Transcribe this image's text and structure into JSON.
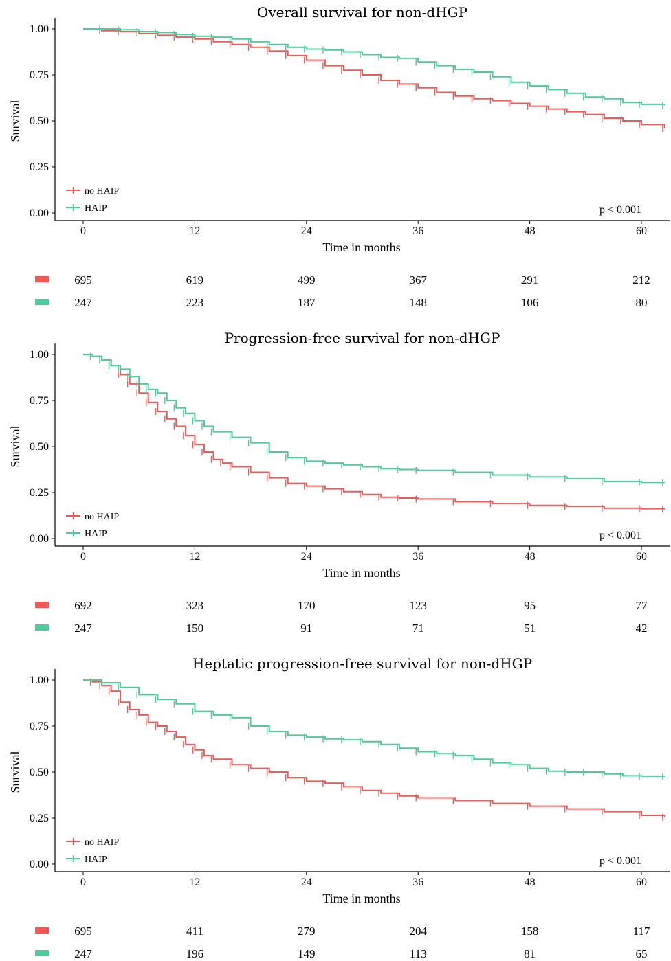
{
  "chart_data": [
    {
      "type": "line",
      "title": "Overall survival for non-dHGP",
      "xlabel": "Time in months",
      "ylabel": "Survival",
      "xlim": [
        0,
        62.5
      ],
      "ylim": [
        0,
        1.05
      ],
      "xticks": [
        0,
        12,
        24,
        36,
        48,
        60
      ],
      "yticks": [
        "0.00",
        "0.25",
        "0.50",
        "0.75",
        "1.00"
      ],
      "legend": "bottom-left",
      "grid": false,
      "p_value": "p < 0.001",
      "series": [
        {
          "name": "no HAIP",
          "color": "#EE5A56",
          "x": [
            0,
            2,
            4,
            6,
            8,
            10,
            12,
            14,
            16,
            18,
            20,
            22,
            24,
            26,
            28,
            30,
            32,
            34,
            36,
            38,
            40,
            42,
            44,
            46,
            48,
            50,
            52,
            54,
            56,
            58,
            60,
            62.5
          ],
          "y": [
            1.0,
            0.99,
            0.985,
            0.975,
            0.965,
            0.955,
            0.945,
            0.93,
            0.915,
            0.9,
            0.88,
            0.855,
            0.83,
            0.8,
            0.775,
            0.75,
            0.72,
            0.7,
            0.68,
            0.655,
            0.635,
            0.62,
            0.61,
            0.595,
            0.58,
            0.565,
            0.55,
            0.535,
            0.515,
            0.5,
            0.48,
            0.46
          ]
        },
        {
          "name": "HAIP",
          "color": "#4DCB9A",
          "x": [
            0,
            2,
            4,
            6,
            8,
            10,
            12,
            14,
            16,
            18,
            20,
            22,
            24,
            26,
            28,
            30,
            32,
            34,
            36,
            38,
            40,
            42,
            44,
            46,
            48,
            50,
            52,
            54,
            56,
            58,
            60,
            62.5
          ],
          "y": [
            1.0,
            1.0,
            0.995,
            0.985,
            0.98,
            0.97,
            0.96,
            0.955,
            0.945,
            0.93,
            0.915,
            0.9,
            0.89,
            0.885,
            0.875,
            0.86,
            0.845,
            0.84,
            0.82,
            0.8,
            0.78,
            0.765,
            0.74,
            0.71,
            0.69,
            0.67,
            0.65,
            0.63,
            0.62,
            0.6,
            0.59,
            0.585
          ]
        }
      ],
      "risk_table": [
        {
          "name": "no HAIP",
          "values": [
            "695",
            "619",
            "499",
            "367",
            "291",
            "212"
          ]
        },
        {
          "name": "HAIP",
          "values": [
            "247",
            "223",
            "187",
            "148",
            "106",
            "80"
          ]
        }
      ]
    },
    {
      "type": "line",
      "title": "Progression-free survival for non-dHGP",
      "xlabel": "Time in months",
      "ylabel": "Survival",
      "xlim": [
        0,
        62.5
      ],
      "ylim": [
        0,
        1.05
      ],
      "xticks": [
        0,
        12,
        24,
        36,
        48,
        60
      ],
      "yticks": [
        "0.00",
        "0.25",
        "0.50",
        "0.75",
        "1.00"
      ],
      "legend": "bottom-left",
      "grid": false,
      "p_value": "p < 0.001",
      "series": [
        {
          "name": "no HAIP",
          "color": "#EE5A56",
          "x": [
            0,
            1,
            2,
            3,
            4,
            5,
            6,
            7,
            8,
            9,
            10,
            11,
            12,
            13,
            14,
            15,
            16,
            18,
            20,
            22,
            24,
            26,
            28,
            30,
            32,
            34,
            36,
            40,
            44,
            48,
            52,
            56,
            60,
            62.5
          ],
          "y": [
            1.0,
            0.99,
            0.97,
            0.94,
            0.89,
            0.84,
            0.79,
            0.74,
            0.69,
            0.65,
            0.61,
            0.56,
            0.51,
            0.47,
            0.43,
            0.41,
            0.39,
            0.36,
            0.33,
            0.3,
            0.285,
            0.27,
            0.255,
            0.24,
            0.225,
            0.22,
            0.215,
            0.2,
            0.19,
            0.18,
            0.175,
            0.165,
            0.162,
            0.16
          ]
        },
        {
          "name": "HAIP",
          "color": "#4DCB9A",
          "x": [
            0,
            1,
            2,
            3,
            4,
            5,
            6,
            7,
            8,
            9,
            10,
            11,
            12,
            13,
            14,
            16,
            18,
            20,
            22,
            24,
            26,
            28,
            30,
            32,
            34,
            36,
            40,
            44,
            48,
            52,
            56,
            60,
            62.5
          ],
          "y": [
            1.0,
            0.99,
            0.97,
            0.94,
            0.92,
            0.88,
            0.84,
            0.81,
            0.79,
            0.75,
            0.71,
            0.68,
            0.64,
            0.61,
            0.58,
            0.55,
            0.52,
            0.47,
            0.44,
            0.42,
            0.41,
            0.4,
            0.39,
            0.38,
            0.375,
            0.37,
            0.36,
            0.345,
            0.335,
            0.325,
            0.31,
            0.305,
            0.303
          ]
        }
      ],
      "risk_table": [
        {
          "name": "no HAIP",
          "values": [
            "692",
            "323",
            "170",
            "123",
            "95",
            "77"
          ]
        },
        {
          "name": "HAIP",
          "values": [
            "247",
            "150",
            "91",
            "71",
            "51",
            "42"
          ]
        }
      ]
    },
    {
      "type": "line",
      "title": "Heptatic progression-free survival for non-dHGP",
      "xlabel": "Time in months",
      "ylabel": "Survival",
      "xlim": [
        0,
        62.5
      ],
      "ylim": [
        0,
        1.05
      ],
      "xticks": [
        0,
        12,
        24,
        36,
        48,
        60
      ],
      "yticks": [
        "0.00",
        "0.25",
        "0.50",
        "0.75",
        "1.00"
      ],
      "legend": "bottom-left",
      "grid": false,
      "p_value": "p < 0.001",
      "series": [
        {
          "name": "no HAIP",
          "color": "#EE5A56",
          "x": [
            0,
            1,
            2,
            3,
            4,
            5,
            6,
            7,
            8,
            9,
            10,
            11,
            12,
            13,
            14,
            16,
            18,
            20,
            22,
            24,
            26,
            28,
            30,
            32,
            34,
            36,
            40,
            44,
            48,
            52,
            56,
            60,
            62.5
          ],
          "y": [
            1.0,
            0.99,
            0.97,
            0.94,
            0.88,
            0.84,
            0.81,
            0.77,
            0.75,
            0.72,
            0.69,
            0.65,
            0.62,
            0.59,
            0.57,
            0.54,
            0.52,
            0.5,
            0.47,
            0.45,
            0.44,
            0.42,
            0.4,
            0.385,
            0.37,
            0.36,
            0.345,
            0.33,
            0.315,
            0.3,
            0.285,
            0.265,
            0.255
          ]
        },
        {
          "name": "HAIP",
          "color": "#4DCB9A",
          "x": [
            0,
            2,
            4,
            6,
            8,
            10,
            12,
            14,
            16,
            18,
            20,
            22,
            24,
            26,
            28,
            30,
            32,
            34,
            36,
            38,
            40,
            42,
            44,
            46,
            48,
            50,
            52,
            54,
            56,
            58,
            60,
            62.5
          ],
          "y": [
            1.0,
            0.985,
            0.96,
            0.92,
            0.895,
            0.87,
            0.83,
            0.81,
            0.795,
            0.75,
            0.72,
            0.7,
            0.69,
            0.68,
            0.675,
            0.665,
            0.65,
            0.63,
            0.61,
            0.6,
            0.59,
            0.57,
            0.55,
            0.54,
            0.52,
            0.505,
            0.5,
            0.5,
            0.49,
            0.48,
            0.478,
            0.475
          ]
        }
      ],
      "risk_table": [
        {
          "name": "no HAIP",
          "values": [
            "695",
            "411",
            "279",
            "204",
            "158",
            "117"
          ]
        },
        {
          "name": "HAIP",
          "values": [
            "247",
            "196",
            "149",
            "113",
            "81",
            "65"
          ]
        }
      ]
    }
  ]
}
